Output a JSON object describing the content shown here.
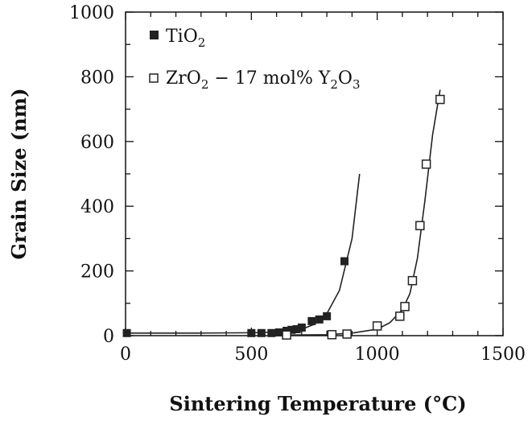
{
  "chart_data": {
    "type": "scatter",
    "xlabel": "Sintering Temperature (°C)",
    "ylabel": "Grain Size (nm)",
    "xlim": [
      0,
      1500
    ],
    "ylim": [
      0,
      1000
    ],
    "x_ticks": [
      0,
      500,
      1000,
      1500
    ],
    "y_ticks": [
      0,
      200,
      400,
      600,
      800,
      1000
    ],
    "x_tick_labels": [
      "0",
      "500",
      "1000",
      "1500"
    ],
    "y_tick_labels": [
      "0",
      "200",
      "400",
      "600",
      "800",
      "1000"
    ],
    "grid": false,
    "legend_position": "top-left",
    "series": [
      {
        "name": "TiO2",
        "legend": {
          "base": "TiO",
          "sub": "2"
        },
        "marker": "filled-square",
        "color": "#222222",
        "x": [
          5,
          500,
          540,
          580,
          610,
          640,
          660,
          680,
          700,
          740,
          770,
          800,
          870
        ],
        "y": [
          8,
          8,
          8,
          8,
          10,
          15,
          18,
          20,
          25,
          45,
          50,
          60,
          230
        ],
        "fit_x": [
          0,
          300,
          500,
          600,
          650,
          700,
          750,
          800,
          850,
          900,
          930
        ],
        "fit_y": [
          8,
          8,
          9,
          11,
          14,
          20,
          35,
          68,
          140,
          300,
          500
        ]
      },
      {
        "name": "ZrO2 - 17 mol% Y2O3",
        "legend": {
          "p1": "ZrO",
          "s1": "2",
          "p2": " − 17 mol% Y",
          "s2": "2",
          "p3": "O",
          "s3": "3"
        },
        "marker": "open-square",
        "color": "#222222",
        "x": [
          640,
          820,
          880,
          1000,
          1090,
          1110,
          1140,
          1170,
          1195,
          1250
        ],
        "y": [
          2,
          3,
          5,
          30,
          60,
          90,
          170,
          340,
          530,
          730
        ],
        "fit_x": [
          650,
          800,
          900,
          1000,
          1050,
          1100,
          1130,
          1160,
          1190,
          1220,
          1250
        ],
        "fit_y": [
          2,
          3,
          8,
          20,
          40,
          80,
          130,
          240,
          420,
          620,
          760
        ]
      }
    ]
  }
}
